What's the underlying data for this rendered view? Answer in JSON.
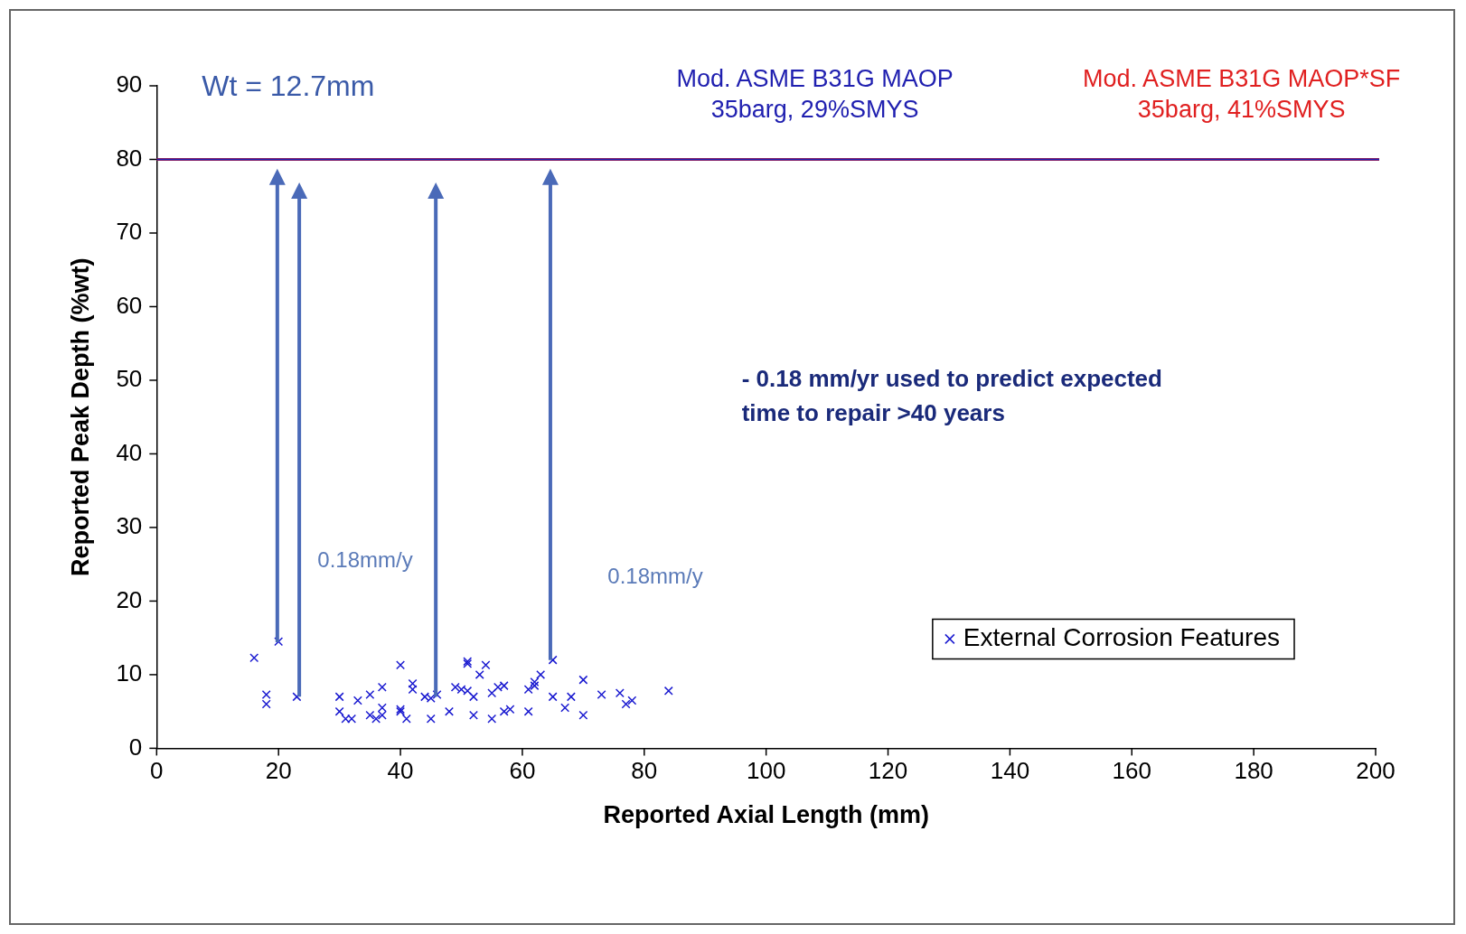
{
  "chart_data": {
    "type": "scatter",
    "xlabel": "Reported Axial Length (mm)",
    "ylabel": "Reported Peak Depth (%wt)",
    "xlim": [
      0,
      200
    ],
    "xticks": [
      0,
      20,
      40,
      60,
      80,
      100,
      120,
      140,
      160,
      180,
      200
    ],
    "ylim": [
      0,
      90
    ],
    "yticks": [
      0,
      10,
      20,
      30,
      40,
      50,
      60,
      70,
      80,
      90
    ],
    "grid": false,
    "legend": "bottom right",
    "marker": "cross",
    "series": [
      {
        "name": "External Corrosion Features",
        "color": "#1a1ad0",
        "x": [
          16,
          20,
          18,
          18,
          23,
          30,
          30,
          31,
          32,
          33,
          35,
          35,
          36,
          37,
          37,
          37,
          40,
          40,
          40,
          41,
          42,
          42,
          44,
          45,
          45,
          46,
          48,
          49,
          50,
          51,
          51,
          51,
          52,
          52,
          53,
          54,
          55,
          55,
          56,
          57,
          57,
          58,
          61,
          61,
          62,
          62,
          63,
          65,
          65,
          67,
          68,
          70,
          70,
          73,
          76,
          77,
          78,
          84
        ],
        "values": [
          12.3,
          14.5,
          7.3,
          6,
          7,
          7,
          5,
          4,
          4,
          6.5,
          7.3,
          4.5,
          4,
          8.3,
          5.5,
          4.5,
          11.3,
          5.3,
          5,
          4,
          8.8,
          8,
          7,
          6.8,
          4,
          7.3,
          5,
          8.3,
          8,
          11.8,
          11.5,
          7.8,
          7,
          4.5,
          10,
          11.3,
          4,
          7.5,
          8.3,
          8.5,
          5,
          5.3,
          8,
          5,
          8.5,
          9,
          10,
          12,
          7,
          5.5,
          7,
          9.3,
          4.5,
          7.3,
          7.5,
          6,
          6.5,
          7.8
        ]
      }
    ],
    "ref_lines": [
      {
        "axis": "y",
        "value": 80,
        "label": "Mod. ASME B31G MAOP*SF\n35barg, 41%SMYS",
        "color": "#e02020"
      },
      {
        "axis": "y",
        "value": 80,
        "label": "Mod. ASME B31G MAOP\n35barg, 29%SMYS",
        "color": "#2020b0"
      }
    ],
    "annotations": [
      "Wt = 12.7mm",
      "- 0.18 mm/yr used to predict expected\ntime to repair >40 years",
      "0.18mm/y",
      "0.18mm/y"
    ]
  }
}
